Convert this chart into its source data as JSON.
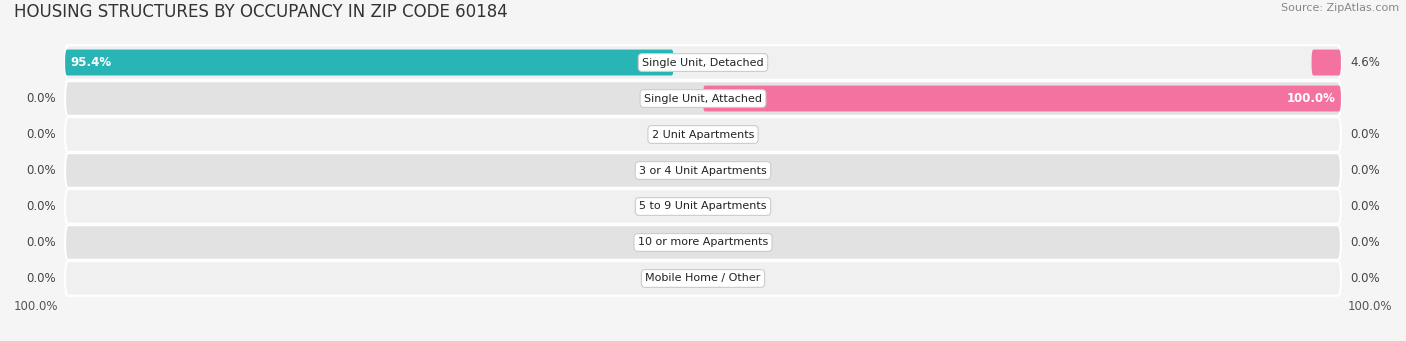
{
  "title": "HOUSING STRUCTURES BY OCCUPANCY IN ZIP CODE 60184",
  "source": "Source: ZipAtlas.com",
  "categories": [
    "Single Unit, Detached",
    "Single Unit, Attached",
    "2 Unit Apartments",
    "3 or 4 Unit Apartments",
    "5 to 9 Unit Apartments",
    "10 or more Apartments",
    "Mobile Home / Other"
  ],
  "owner_values": [
    95.4,
    0.0,
    0.0,
    0.0,
    0.0,
    0.0,
    0.0
  ],
  "renter_values": [
    4.6,
    100.0,
    0.0,
    0.0,
    0.0,
    0.0,
    0.0
  ],
  "owner_color": "#29B5B5",
  "renter_color": "#F472A0",
  "row_bg_light": "#f0f0f0",
  "row_bg_dark": "#e2e2e2",
  "fig_bg": "#f5f5f5",
  "max_val": 100.0,
  "title_fontsize": 12,
  "bar_label_fontsize": 8.5,
  "cat_label_fontsize": 8,
  "legend_fontsize": 9,
  "source_fontsize": 8,
  "figsize": [
    14.06,
    3.41
  ],
  "dpi": 100
}
